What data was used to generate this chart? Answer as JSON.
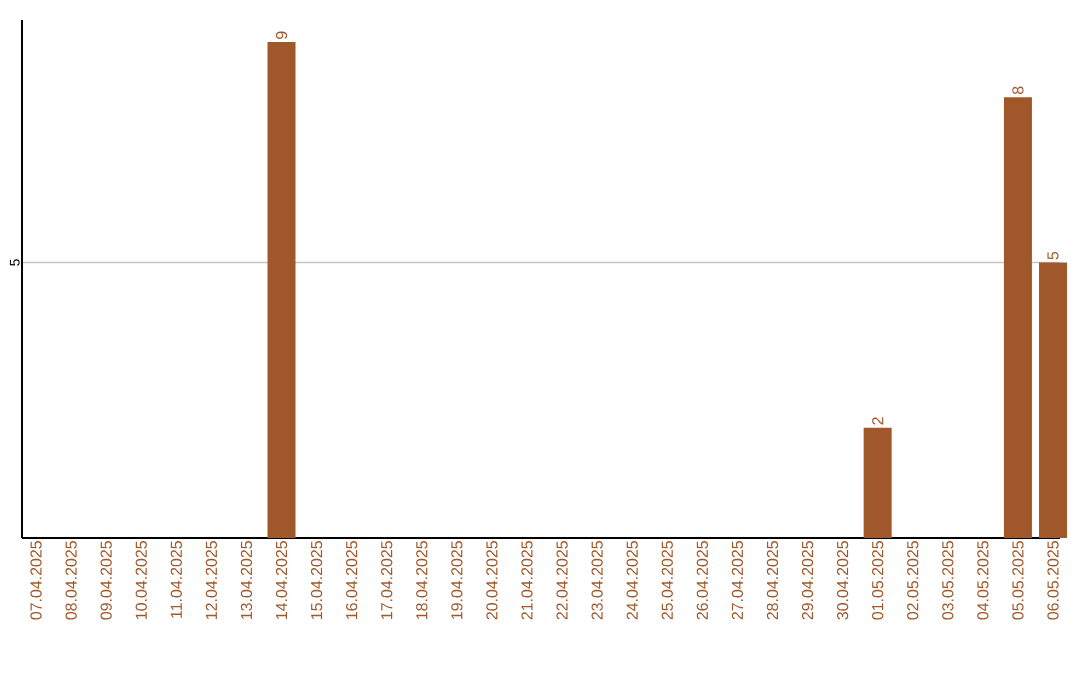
{
  "chart_data": {
    "type": "bar",
    "categories": [
      "07.04.2025",
      "08.04.2025",
      "09.04.2025",
      "10.04.2025",
      "11.04.2025",
      "12.04.2025",
      "13.04.2025",
      "14.04.2025",
      "15.04.2025",
      "16.04.2025",
      "17.04.2025",
      "18.04.2025",
      "19.04.2025",
      "20.04.2025",
      "21.04.2025",
      "22.04.2025",
      "23.04.2025",
      "24.04.2025",
      "25.04.2025",
      "26.04.2025",
      "27.04.2025",
      "28.04.2025",
      "29.04.2025",
      "30.04.2025",
      "01.05.2025",
      "02.05.2025",
      "03.05.2025",
      "04.05.2025",
      "05.05.2025",
      "06.05.2025"
    ],
    "values": [
      0,
      0,
      0,
      0,
      0,
      0,
      0,
      9,
      0,
      0,
      0,
      0,
      0,
      0,
      0,
      0,
      0,
      0,
      0,
      0,
      0,
      0,
      0,
      0,
      2,
      0,
      0,
      0,
      8,
      5
    ],
    "value_labels": [
      null,
      null,
      null,
      null,
      null,
      null,
      null,
      "9",
      null,
      null,
      null,
      null,
      null,
      null,
      null,
      null,
      null,
      null,
      null,
      null,
      null,
      null,
      null,
      null,
      "2",
      null,
      null,
      null,
      "8",
      "5"
    ],
    "color": "#a0582a",
    "ylim": [
      0,
      9.4
    ],
    "yticks": [
      5
    ],
    "grid": "y"
  }
}
